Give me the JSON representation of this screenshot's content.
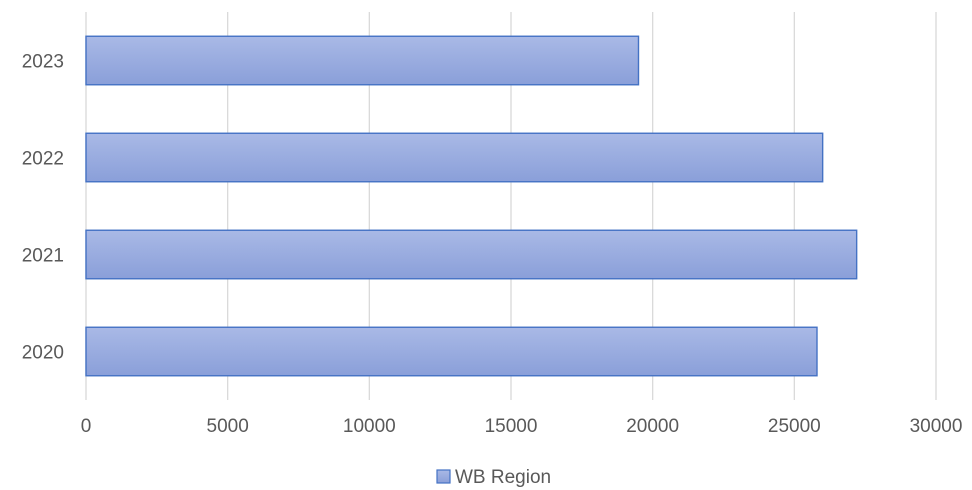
{
  "chart_data": {
    "type": "bar",
    "orientation": "horizontal",
    "categories": [
      "2020",
      "2021",
      "2022",
      "2023"
    ],
    "series": [
      {
        "name": "WB Region",
        "values": [
          25800,
          27200,
          26000,
          19500
        ],
        "color": "#8fa4dc",
        "border_color": "#4472c4"
      }
    ],
    "x_ticks": [
      0,
      5000,
      10000,
      15000,
      20000,
      25000,
      30000
    ],
    "xlim": [
      0,
      30000
    ],
    "grid": true,
    "legend": {
      "position": "bottom"
    }
  },
  "legend": {
    "label": "WB Region"
  }
}
